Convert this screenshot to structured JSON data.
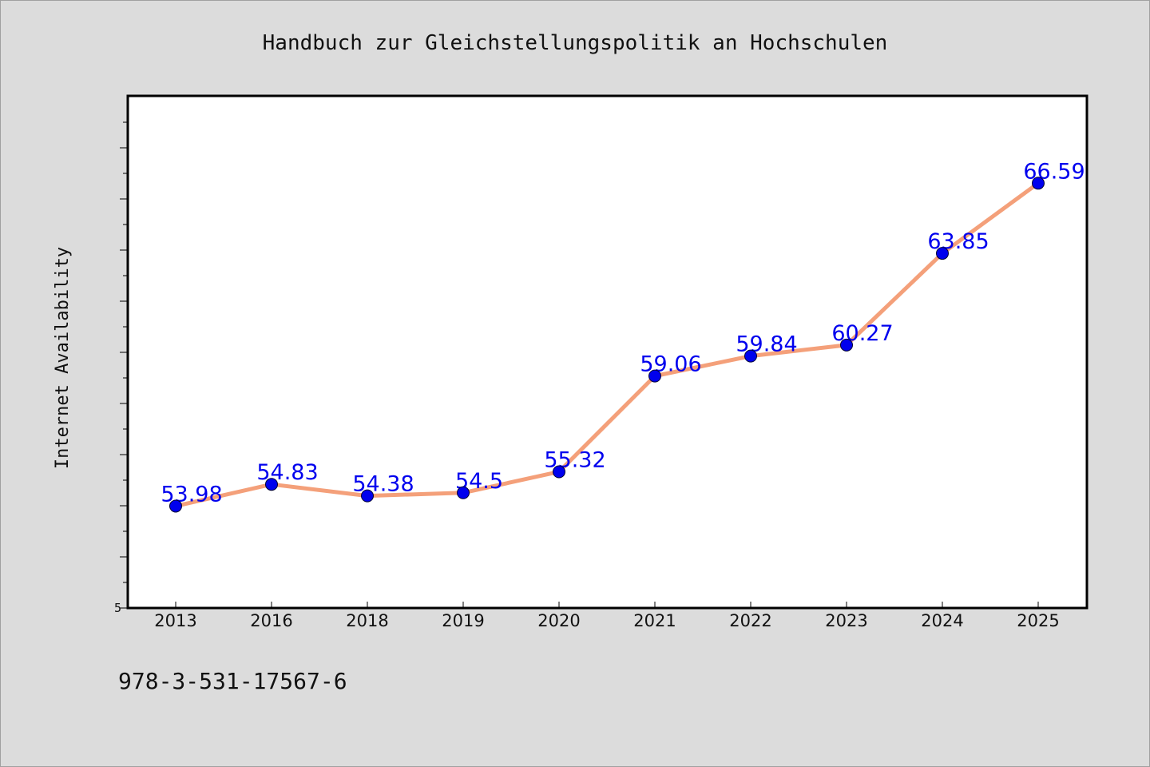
{
  "chart_data": {
    "type": "line",
    "title": "Handbuch zur Gleichstellungspolitik an Hochschulen",
    "xlabel": "",
    "ylabel": "Internet Availability",
    "categories": [
      "2013",
      "2016",
      "2018",
      "2019",
      "2020",
      "2021",
      "2022",
      "2023",
      "2024",
      "2025"
    ],
    "series": [
      {
        "values": [
          53.98,
          54.83,
          54.38,
          54.5,
          55.32,
          59.06,
          59.84,
          60.27,
          63.85,
          66.59
        ],
        "labels": [
          "53.98",
          "54.83",
          "54.38",
          "54.5",
          "55.32",
          "59.06",
          "59.84",
          "60.27",
          "63.85",
          "66.59"
        ]
      }
    ],
    "y_tick_labels": [
      "5"
    ],
    "ylim": [
      50,
      70
    ],
    "line_color": "#f4a07a",
    "marker_color": "#0000ee",
    "label_color": "#0000ee",
    "grid": false
  },
  "footer": {
    "isbn": "978-3-531-17567-6"
  }
}
